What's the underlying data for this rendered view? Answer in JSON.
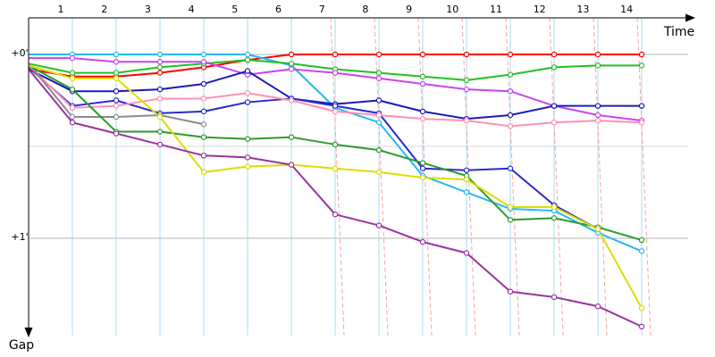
{
  "chart_data": {
    "type": "line",
    "title": "",
    "xlabel": "Time",
    "ylabel": "Gap",
    "x_ticks": [
      "1",
      "2",
      "3",
      "4",
      "5",
      "6",
      "7",
      "8",
      "9",
      "10",
      "11",
      "12",
      "13",
      "14"
    ],
    "y_ticks": [
      "+0'",
      "+1'"
    ],
    "legend": "none",
    "grid": true,
    "colors": {
      "vertical_grid": "#a9dcf0",
      "horizontal_grid": "#b4b4b4",
      "guide_line": "#f4a7a7"
    },
    "series": [
      {
        "color": "#ff0000",
        "values": [
          0.08,
          0.12,
          0.12,
          0.1,
          0.07,
          0.03,
          0.0,
          0.0,
          0.0,
          0.0,
          0.0,
          0.0,
          0.0,
          0.0,
          0.0
        ]
      },
      {
        "color": "#26b8f0",
        "values": [
          0.0,
          0.0,
          0.0,
          0.0,
          0.0,
          0.0,
          0.06,
          0.29,
          0.37,
          0.66,
          0.75,
          0.84,
          0.85,
          0.97,
          1.07
        ]
      },
      {
        "color": "#22c022",
        "values": [
          0.05,
          0.1,
          0.1,
          0.07,
          0.05,
          0.03,
          0.05,
          0.08,
          0.1,
          0.12,
          0.14,
          0.11,
          0.07,
          0.06,
          0.06
        ]
      },
      {
        "color": "#cc44ee",
        "values": [
          0.02,
          0.02,
          0.04,
          0.04,
          0.04,
          0.11,
          0.08,
          0.1,
          0.13,
          0.16,
          0.19,
          0.2,
          0.28,
          0.33,
          0.36
        ]
      },
      {
        "color": "#1a1ab8",
        "values": [
          0.08,
          0.2,
          0.2,
          0.19,
          0.16,
          0.09,
          0.24,
          0.27,
          0.25,
          0.31,
          0.35,
          0.33,
          0.28,
          0.28,
          0.28
        ]
      },
      {
        "color": "#2a2acc",
        "values": [
          0.07,
          0.28,
          0.25,
          0.32,
          0.31,
          0.26,
          0.24,
          0.28,
          0.32,
          0.62,
          0.63,
          0.62,
          0.82,
          0.95,
          null
        ]
      },
      {
        "color": "#ff8fb4",
        "values": [
          0.06,
          0.29,
          0.28,
          0.24,
          0.24,
          0.21,
          0.25,
          0.31,
          0.33,
          0.35,
          0.36,
          0.39,
          0.37,
          0.36,
          0.37
        ]
      },
      {
        "color": "#8c8c8c",
        "values": [
          0.05,
          0.34,
          0.34,
          0.33,
          0.38,
          null,
          null,
          null,
          null,
          null,
          null,
          null,
          null,
          null,
          null
        ]
      },
      {
        "color": "#2e9a2e",
        "values": [
          0.06,
          0.19,
          0.42,
          0.42,
          0.45,
          0.46,
          0.45,
          0.49,
          0.52,
          0.59,
          0.66,
          0.9,
          0.89,
          0.94,
          1.01
        ]
      },
      {
        "color": "#dddd00",
        "values": [
          0.06,
          0.13,
          0.13,
          0.34,
          0.64,
          0.61,
          0.6,
          0.62,
          0.64,
          0.67,
          0.68,
          0.83,
          0.83,
          0.95,
          1.38
        ]
      },
      {
        "color": "#9933a0",
        "values": [
          0.08,
          0.37,
          0.43,
          0.49,
          0.55,
          0.56,
          0.6,
          0.87,
          0.93,
          1.02,
          1.08,
          1.29,
          1.32,
          1.37,
          1.48
        ]
      }
    ]
  }
}
